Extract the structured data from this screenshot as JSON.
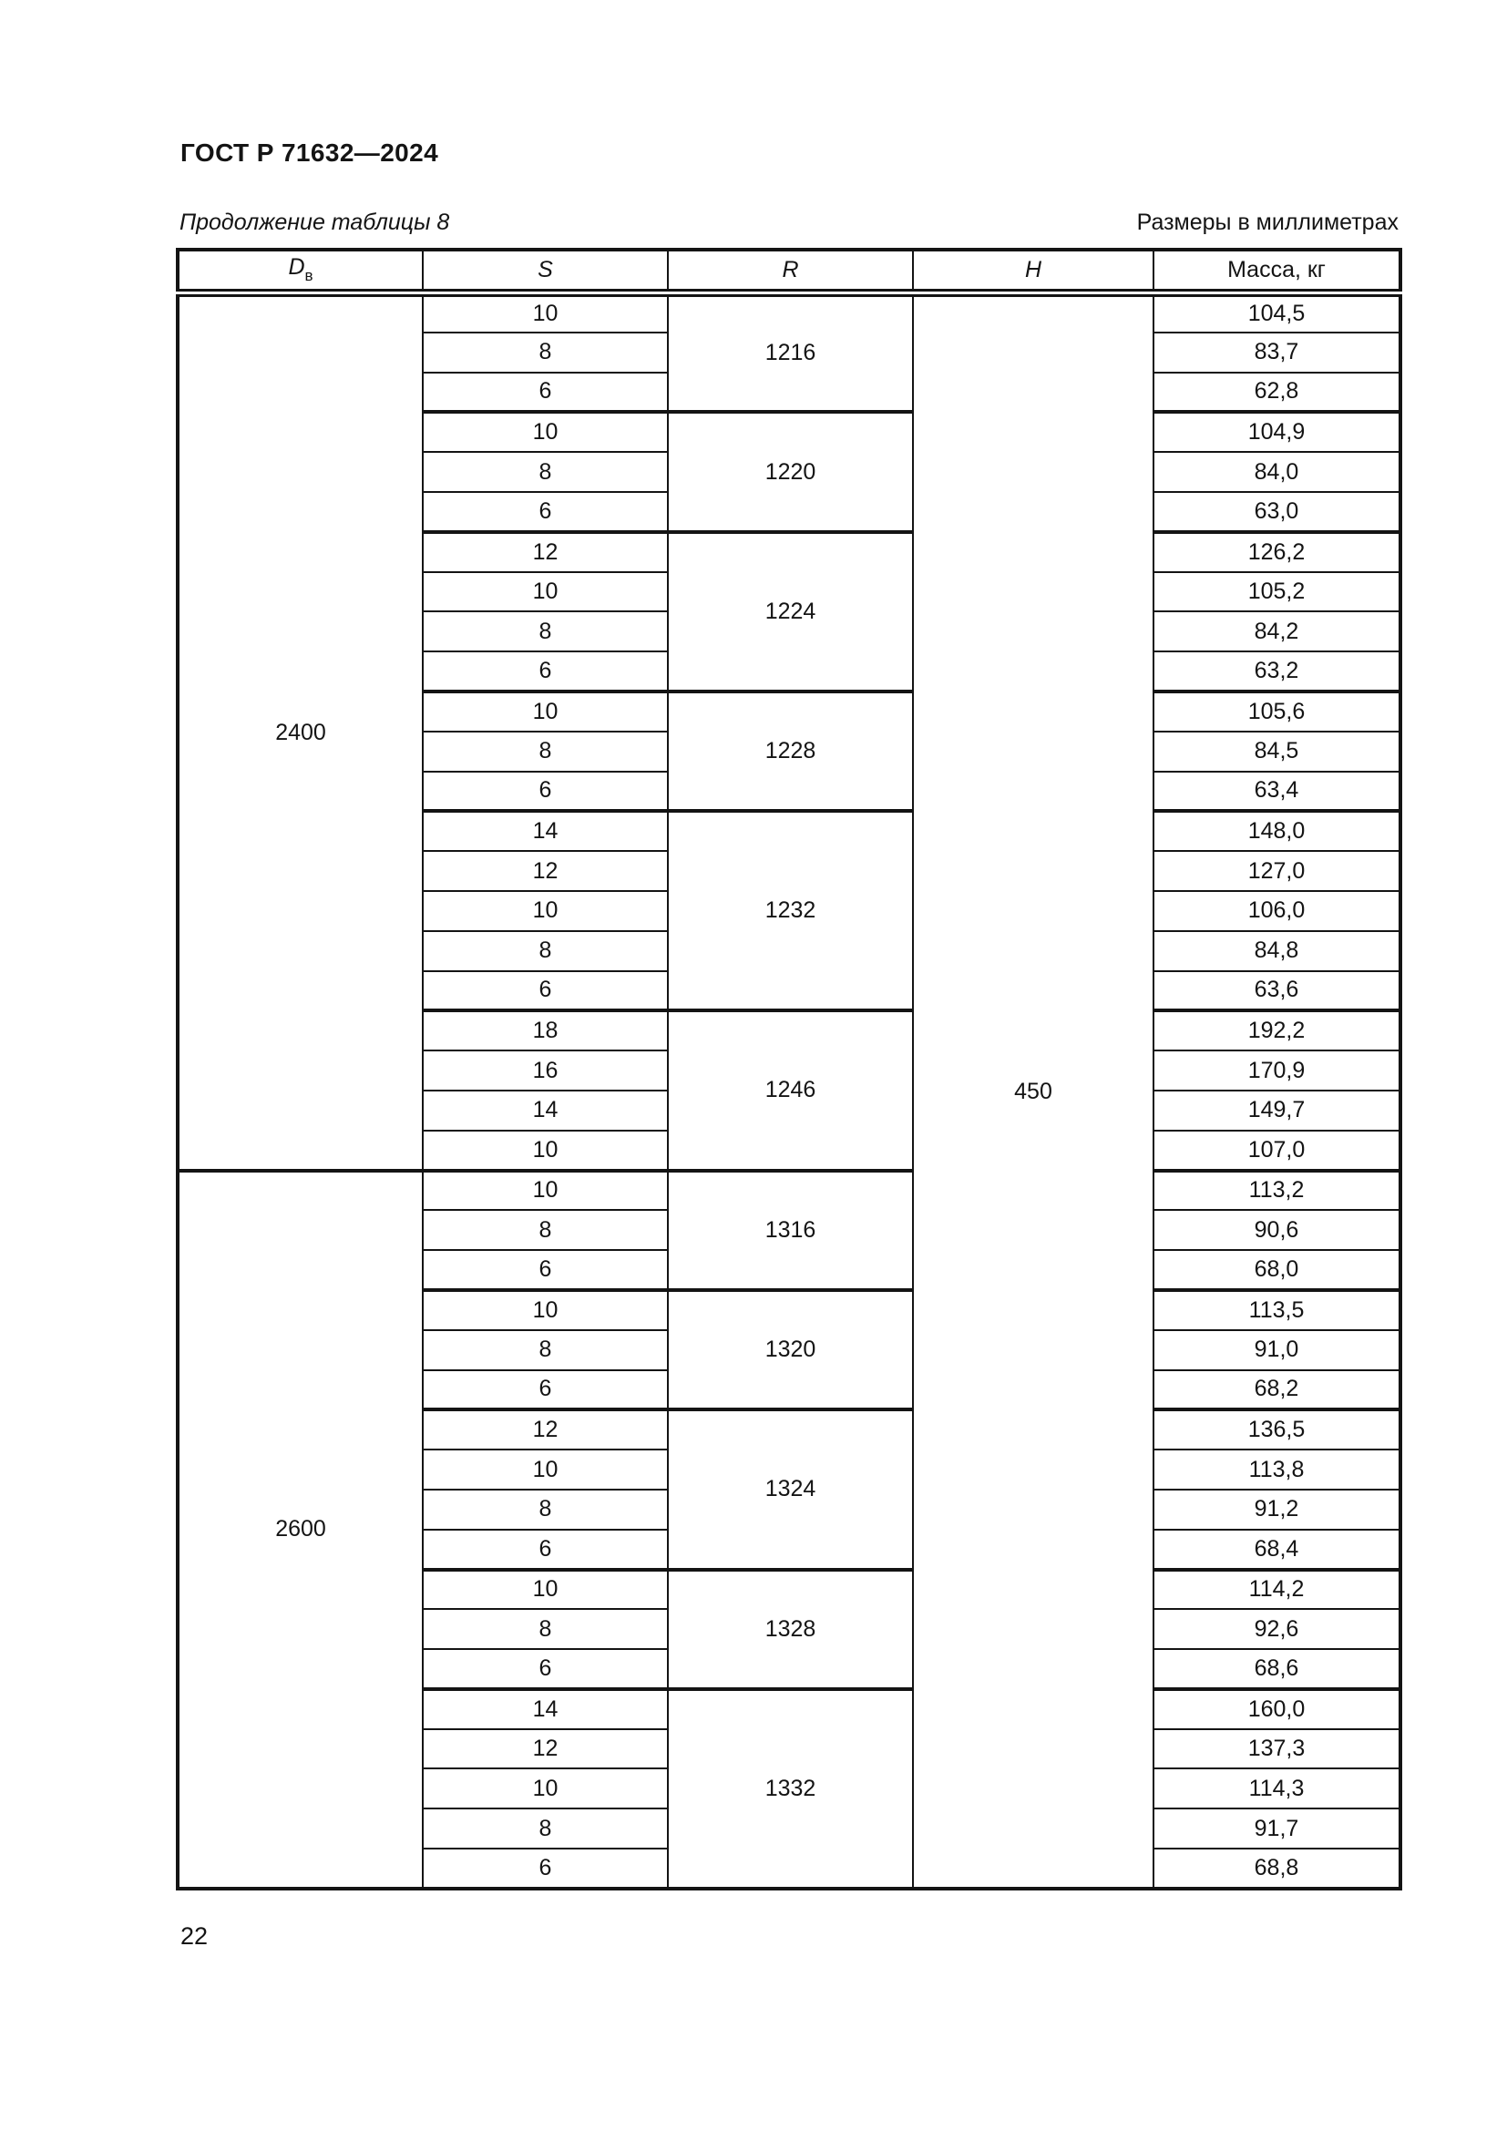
{
  "page": {
    "doc_number": "ГОСТ Р 71632—2024",
    "table_caption": "Продолжение таблицы 8",
    "units_note": "Размеры в миллиметрах",
    "page_number": "22"
  },
  "table": {
    "headers": {
      "d_base": "D",
      "d_sub": "в",
      "s": "S",
      "r": "R",
      "h": "H",
      "mass": "Масса, кг"
    },
    "h_value": "450",
    "sections": [
      {
        "d": "2400",
        "groups": [
          {
            "r": "1216",
            "rows": [
              {
                "s": "10",
                "mass": "104,5"
              },
              {
                "s": "8",
                "mass": "83,7"
              },
              {
                "s": "6",
                "mass": "62,8"
              }
            ]
          },
          {
            "r": "1220",
            "rows": [
              {
                "s": "10",
                "mass": "104,9"
              },
              {
                "s": "8",
                "mass": "84,0"
              },
              {
                "s": "6",
                "mass": "63,0"
              }
            ]
          },
          {
            "r": "1224",
            "rows": [
              {
                "s": "12",
                "mass": "126,2"
              },
              {
                "s": "10",
                "mass": "105,2"
              },
              {
                "s": "8",
                "mass": "84,2"
              },
              {
                "s": "6",
                "mass": "63,2"
              }
            ]
          },
          {
            "r": "1228",
            "rows": [
              {
                "s": "10",
                "mass": "105,6"
              },
              {
                "s": "8",
                "mass": "84,5"
              },
              {
                "s": "6",
                "mass": "63,4"
              }
            ]
          },
          {
            "r": "1232",
            "rows": [
              {
                "s": "14",
                "mass": "148,0"
              },
              {
                "s": "12",
                "mass": "127,0"
              },
              {
                "s": "10",
                "mass": "106,0"
              },
              {
                "s": "8",
                "mass": "84,8"
              },
              {
                "s": "6",
                "mass": "63,6"
              }
            ]
          },
          {
            "r": "1246",
            "rows": [
              {
                "s": "18",
                "mass": "192,2"
              },
              {
                "s": "16",
                "mass": "170,9"
              },
              {
                "s": "14",
                "mass": "149,7"
              },
              {
                "s": "10",
                "mass": "107,0"
              }
            ]
          }
        ]
      },
      {
        "d": "2600",
        "groups": [
          {
            "r": "1316",
            "rows": [
              {
                "s": "10",
                "mass": "113,2"
              },
              {
                "s": "8",
                "mass": "90,6"
              },
              {
                "s": "6",
                "mass": "68,0"
              }
            ]
          },
          {
            "r": "1320",
            "rows": [
              {
                "s": "10",
                "mass": "113,5"
              },
              {
                "s": "8",
                "mass": "91,0"
              },
              {
                "s": "6",
                "mass": "68,2"
              }
            ]
          },
          {
            "r": "1324",
            "rows": [
              {
                "s": "12",
                "mass": "136,5"
              },
              {
                "s": "10",
                "mass": "113,8"
              },
              {
                "s": "8",
                "mass": "91,2"
              },
              {
                "s": "6",
                "mass": "68,4"
              }
            ]
          },
          {
            "r": "1328",
            "rows": [
              {
                "s": "10",
                "mass": "114,2"
              },
              {
                "s": "8",
                "mass": "92,6"
              },
              {
                "s": "6",
                "mass": "68,6"
              }
            ]
          },
          {
            "r": "1332",
            "rows": [
              {
                "s": "14",
                "mass": "160,0"
              },
              {
                "s": "12",
                "mass": "137,3"
              },
              {
                "s": "10",
                "mass": "114,3"
              },
              {
                "s": "8",
                "mass": "91,7"
              },
              {
                "s": "6",
                "mass": "68,8"
              }
            ]
          }
        ]
      }
    ]
  }
}
